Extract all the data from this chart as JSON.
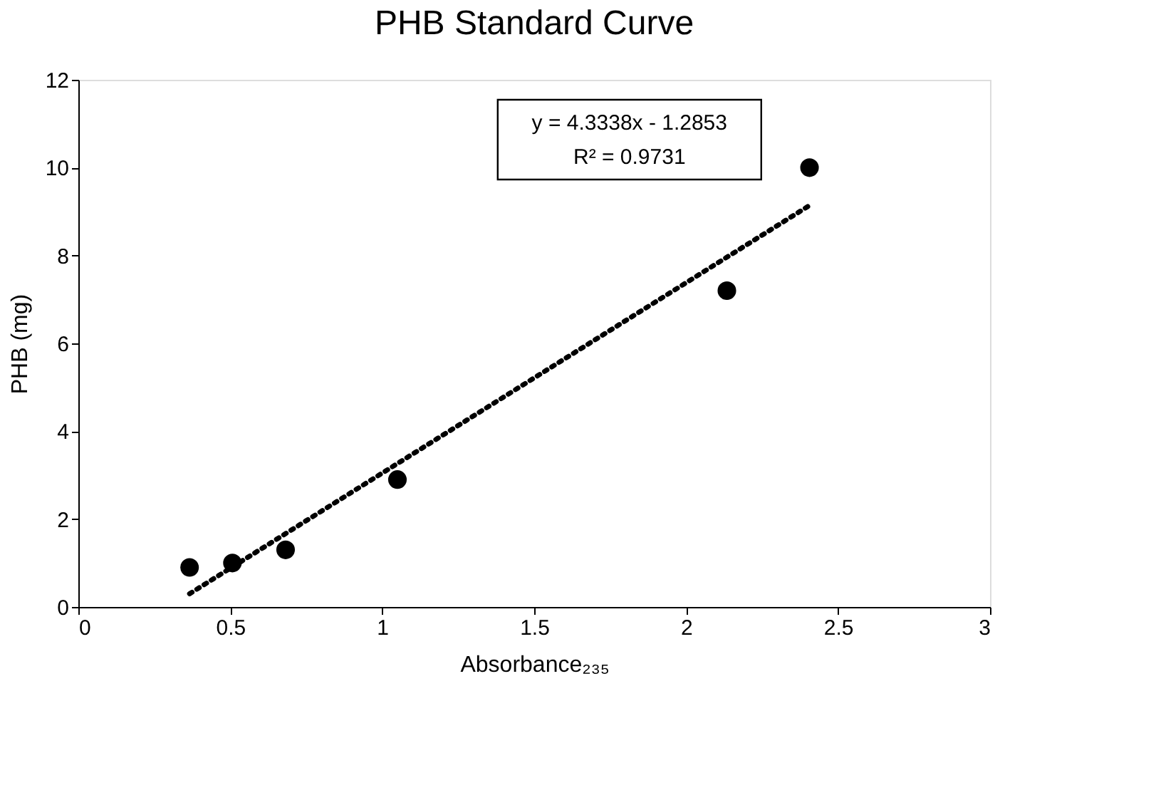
{
  "chart_data": {
    "type": "scatter",
    "title": "PHB Standard Curve",
    "xlabel": "Absorbance₂₃₅",
    "ylabel": "PHB (mg)",
    "series": [
      {
        "color": "#000000",
        "marker": "circle",
        "x": [
          0.366,
          0.507,
          0.682,
          1.05,
          2.134,
          2.406
        ],
        "values": [
          0.9,
          1.0,
          1.3,
          2.9,
          7.2,
          10.0
        ]
      },
      {
        "type": "line",
        "color": "#000000",
        "line_style": "dotted",
        "x": [
          0.366,
          2.406
        ],
        "values": [
          0.3,
          9.14
        ]
      }
    ],
    "annotations": [
      "y = 4.3338x - 1.2853",
      "R² = 0.9731"
    ],
    "xlim": [
      0,
      3
    ],
    "xticks": [
      0,
      0.5,
      1,
      1.5,
      2,
      2.5,
      3
    ],
    "ylim": [
      0,
      12
    ],
    "yticks": [
      0,
      2,
      4,
      6,
      8,
      10,
      12
    ],
    "grid": false
  }
}
